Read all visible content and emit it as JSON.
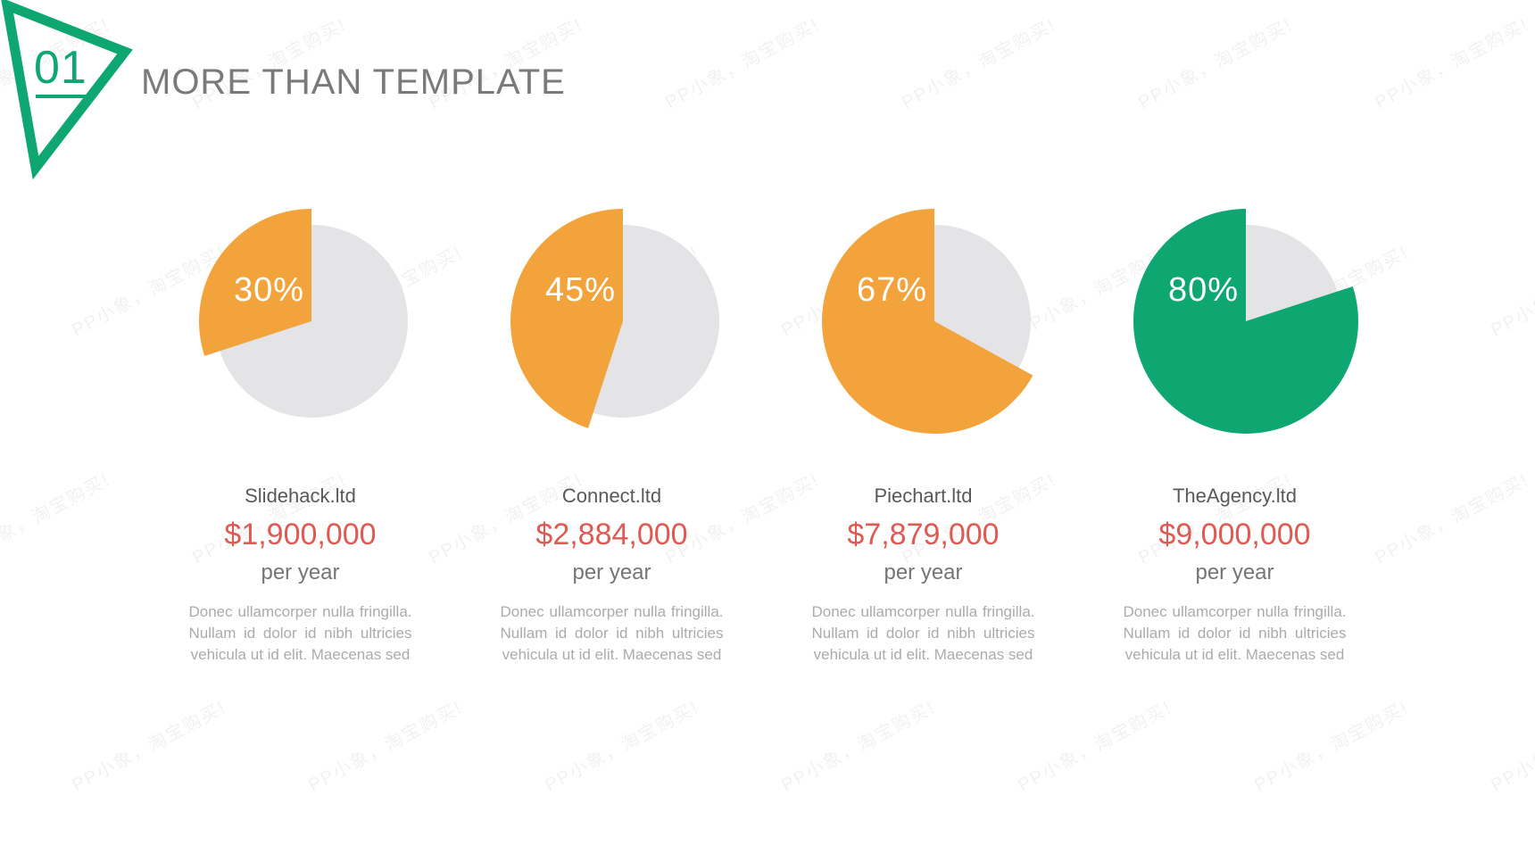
{
  "header": {
    "badge_number": "01",
    "title": "MORE THAN TEMPLATE"
  },
  "watermark": {
    "text": "PP小象，淘宝购买!"
  },
  "columns": [
    {
      "percent_label": "30%",
      "company": "Slidehack.ltd",
      "amount": "$1,900,000",
      "period": "per year",
      "description": "Donec ullamcorper nulla fringilla. Nullam id dolor id nibh ultricies vehicula ut id elit. Maecenas sed"
    },
    {
      "percent_label": "45%",
      "company": "Connect.ltd",
      "amount": "$2,884,000",
      "period": "per year",
      "description": "Donec ullamcorper nulla fringilla. Nullam id dolor id nibh ultricies vehicula ut id elit. Maecenas sed"
    },
    {
      "percent_label": "67%",
      "company": "Piechart.ltd",
      "amount": "$7,879,000",
      "period": "per year",
      "description": "Donec ullamcorper nulla fringilla. Nullam id dolor id nibh ultricies vehicula ut id elit. Maecenas sed"
    },
    {
      "percent_label": "80%",
      "company": "TheAgency.ltd",
      "amount": "$9,000,000",
      "period": "per year",
      "description": "Donec ullamcorper nulla fringilla. Nullam id dolor id nibh ultricies vehicula ut id elit. Maecenas sed"
    }
  ],
  "chart_data": [
    {
      "type": "pie",
      "title": "Slidehack.ltd",
      "categories": [
        "highlighted",
        "remainder"
      ],
      "values": [
        30,
        70
      ],
      "colors": [
        "#F2A33C",
        "#E4E4E6"
      ],
      "annotation": "30%",
      "amount_per_year": "$1,900,000"
    },
    {
      "type": "pie",
      "title": "Connect.ltd",
      "categories": [
        "highlighted",
        "remainder"
      ],
      "values": [
        45,
        55
      ],
      "colors": [
        "#F2A33C",
        "#E4E4E6"
      ],
      "annotation": "45%",
      "amount_per_year": "$2,884,000"
    },
    {
      "type": "pie",
      "title": "Piechart.ltd",
      "categories": [
        "highlighted",
        "remainder"
      ],
      "values": [
        67,
        33
      ],
      "colors": [
        "#F2A33C",
        "#E4E4E6"
      ],
      "annotation": "67%",
      "amount_per_year": "$7,879,000"
    },
    {
      "type": "pie",
      "title": "TheAgency.ltd",
      "categories": [
        "highlighted",
        "remainder"
      ],
      "values": [
        80,
        20
      ],
      "colors": [
        "#0EA771",
        "#E4E4E6"
      ],
      "annotation": "80%",
      "amount_per_year": "$9,000,000"
    }
  ],
  "colors": {
    "accent_green": "#0EA771",
    "accent_orange": "#F2A33C",
    "pie_remainder": "#E4E4E6",
    "amount_red": "#DF5A52",
    "title_gray": "#7A7A7A",
    "body_gray": "#ABABAB"
  }
}
